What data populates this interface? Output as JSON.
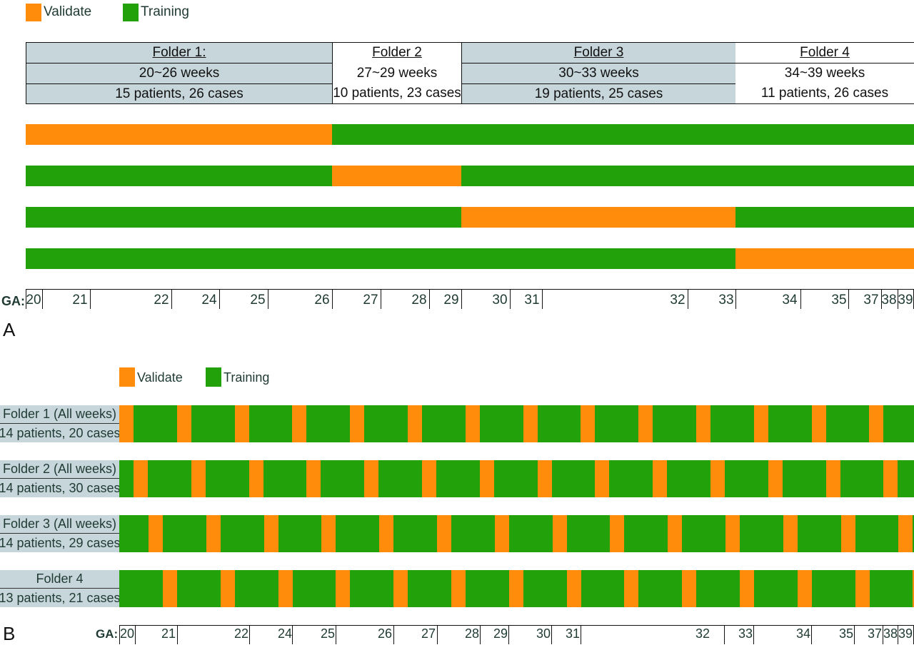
{
  "colors": {
    "validate": "#ff8c0a",
    "training": "#22a10a",
    "header_fill": "#c7d6db"
  },
  "panel_a": {
    "letter": "A",
    "legend": {
      "validate": "Validate",
      "training": "Training"
    },
    "folders": [
      {
        "name": "Folder 1:",
        "weeks": "20~26 weeks",
        "counts": "15 patients, 26 cases",
        "shaded": true
      },
      {
        "name": "Folder 2",
        "weeks": "27~29 weeks",
        "counts": "10 patients, 23 cases",
        "shaded": false
      },
      {
        "name": "Folder 3",
        "weeks": "30~33 weeks",
        "counts": "19 patients, 25 cases",
        "shaded": true
      },
      {
        "name": "Folder 4",
        "weeks": "34~39 weeks",
        "counts": "11 patients, 26 cases",
        "shaded": false
      }
    ],
    "rows": [
      {
        "validate_folder": 1
      },
      {
        "validate_folder": 2
      },
      {
        "validate_folder": 3
      },
      {
        "validate_folder": 4
      }
    ],
    "axis_label": "GA:",
    "ticks": [
      "20",
      "21",
      "22",
      "24",
      "25",
      "26",
      "27",
      "28",
      "29",
      "30",
      "31",
      "32",
      "33",
      "34",
      "35",
      "37",
      "38",
      "39"
    ]
  },
  "panel_b": {
    "letter": "B",
    "legend": {
      "validate": "Validate",
      "training": "Training"
    },
    "folders": [
      {
        "name": "Folder 1 (All weeks)",
        "counts": "14 patients, 20 cases"
      },
      {
        "name": "Folder 2 (All weeks)",
        "counts": "14 patients, 30 cases"
      },
      {
        "name": "Folder 3 (All weeks)",
        "counts": "14 patients, 29 cases"
      },
      {
        "name": "Folder 4",
        "counts": "13 patients, 21 cases"
      }
    ],
    "axis_label": "GA:",
    "ticks": [
      "20",
      "21",
      "22",
      "24",
      "25",
      "26",
      "27",
      "28",
      "29",
      "30",
      "31",
      "32",
      "33",
      "34",
      "35",
      "37",
      "38",
      "39"
    ]
  }
}
